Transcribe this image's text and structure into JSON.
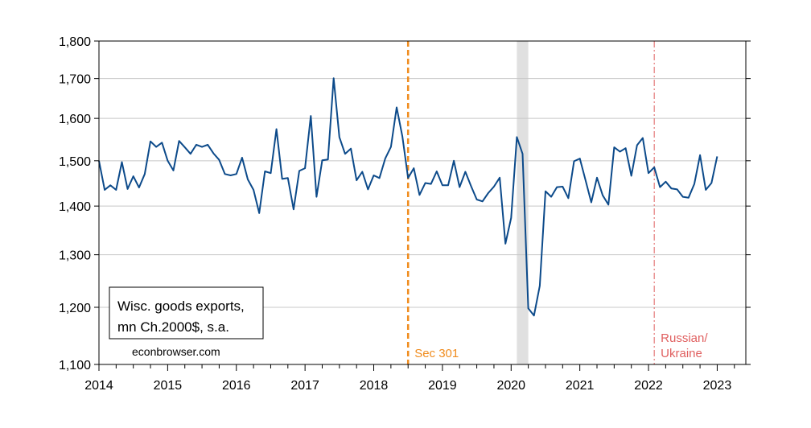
{
  "chart_data": {
    "type": "line",
    "title": "",
    "xlabel": "",
    "ylabel": "",
    "y_scale": "log",
    "ylim": [
      1100,
      1800
    ],
    "xlim": [
      "2014-01",
      "2023-06"
    ],
    "y_ticks": [
      1100,
      1200,
      1300,
      1400,
      1500,
      1600,
      1700,
      1800
    ],
    "y_tick_labels": [
      "1,100",
      "1,200",
      "1,300",
      "1,400",
      "1,500",
      "1,600",
      "1,700",
      "1,800"
    ],
    "x_ticks": [
      2014,
      2015,
      2016,
      2017,
      2018,
      2019,
      2020,
      2021,
      2022,
      2023
    ],
    "x_tick_labels": [
      "2014",
      "2015",
      "2016",
      "2017",
      "2018",
      "2019",
      "2020",
      "2021",
      "2022",
      "2023"
    ],
    "grid": "horizontal",
    "legend": {
      "placement": "bottom-left",
      "lines": [
        "Wisc. goods exports,",
        "mn Ch.2000$, s.a."
      ]
    },
    "credit": "econbrowser.com",
    "shaded_regions": [
      {
        "start": "2020-02",
        "end": "2020-04",
        "color": "#e0e0e0"
      }
    ],
    "vlines": [
      {
        "x": "2018-07",
        "label": "Sec 301",
        "color": "#f08c1e",
        "style": "dashed"
      },
      {
        "x": "2022-02",
        "label": "Russian/\nUkraine",
        "color": "#e06060",
        "style": "dashdot"
      }
    ],
    "series": [
      {
        "color": "#0c4a8a",
        "x": [
          "2014-01",
          "2014-02",
          "2014-03",
          "2014-04",
          "2014-05",
          "2014-06",
          "2014-07",
          "2014-08",
          "2014-09",
          "2014-10",
          "2014-11",
          "2014-12",
          "2015-01",
          "2015-02",
          "2015-03",
          "2015-04",
          "2015-05",
          "2015-06",
          "2015-07",
          "2015-08",
          "2015-09",
          "2015-10",
          "2015-11",
          "2015-12",
          "2016-01",
          "2016-02",
          "2016-03",
          "2016-04",
          "2016-05",
          "2016-06",
          "2016-07",
          "2016-08",
          "2016-09",
          "2016-10",
          "2016-11",
          "2016-12",
          "2017-01",
          "2017-02",
          "2017-03",
          "2017-04",
          "2017-05",
          "2017-06",
          "2017-07",
          "2017-08",
          "2017-09",
          "2017-10",
          "2017-11",
          "2017-12",
          "2018-01",
          "2018-02",
          "2018-03",
          "2018-04",
          "2018-05",
          "2018-06",
          "2018-07",
          "2018-08",
          "2018-09",
          "2018-10",
          "2018-11",
          "2018-12",
          "2019-01",
          "2019-02",
          "2019-03",
          "2019-04",
          "2019-05",
          "2019-06",
          "2019-07",
          "2019-08",
          "2019-09",
          "2019-10",
          "2019-11",
          "2019-12",
          "2020-01",
          "2020-02",
          "2020-03",
          "2020-04",
          "2020-05",
          "2020-06",
          "2020-07",
          "2020-08",
          "2020-09",
          "2020-10",
          "2020-11",
          "2020-12",
          "2021-01",
          "2021-02",
          "2021-03",
          "2021-04",
          "2021-05",
          "2021-06",
          "2021-07",
          "2021-08",
          "2021-09",
          "2021-10",
          "2021-11",
          "2021-12",
          "2022-01",
          "2022-02",
          "2022-03",
          "2022-04",
          "2022-05",
          "2022-06",
          "2022-07",
          "2022-08",
          "2022-09",
          "2022-10",
          "2022-11",
          "2022-12",
          "2023-01"
        ],
        "values": [
          1500,
          1435,
          1445,
          1435,
          1497,
          1437,
          1465,
          1440,
          1470,
          1545,
          1532,
          1542,
          1500,
          1478,
          1546,
          1531,
          1516,
          1537,
          1532,
          1537,
          1517,
          1502,
          1470,
          1467,
          1470,
          1507,
          1458,
          1435,
          1385,
          1476,
          1472,
          1574,
          1459,
          1461,
          1393,
          1477,
          1483,
          1606,
          1420,
          1501,
          1503,
          1701,
          1555,
          1516,
          1528,
          1456,
          1475,
          1436,
          1467,
          1461,
          1505,
          1532,
          1627,
          1557,
          1461,
          1483,
          1424,
          1450,
          1448,
          1476,
          1445,
          1445,
          1500,
          1441,
          1475,
          1443,
          1414,
          1410,
          1428,
          1442,
          1462,
          1322,
          1375,
          1555,
          1516,
          1198,
          1185,
          1240,
          1432,
          1420,
          1441,
          1442,
          1417,
          1499,
          1505,
          1456,
          1408,
          1462,
          1423,
          1403,
          1531,
          1521,
          1529,
          1466,
          1536,
          1553,
          1472,
          1485,
          1441,
          1453,
          1438,
          1436,
          1420,
          1418,
          1448,
          1513,
          1435,
          1450,
          1510
        ]
      }
    ]
  }
}
